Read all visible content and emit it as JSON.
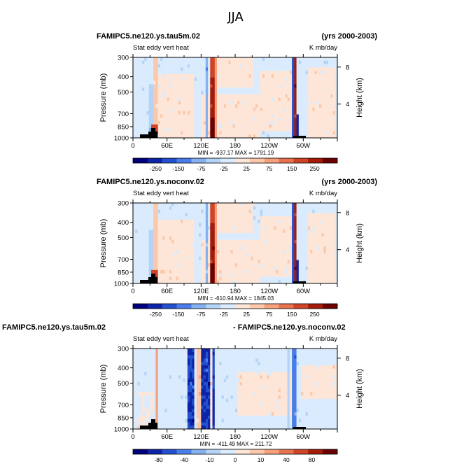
{
  "title": "JJA",
  "colors": {
    "scale": [
      "#00007a",
      "#0d24a6",
      "#2350cf",
      "#4a7de8",
      "#86b1f0",
      "#b3d3f7",
      "#d9ebfc",
      "#fde6d8",
      "#fbc8aa",
      "#f6a07d",
      "#e7724f",
      "#cf4426",
      "#a41b0a",
      "#6b0000"
    ],
    "land": "#000000"
  },
  "chart_data": [
    {
      "type": "heatmap",
      "case_title": "FAMIPC5.ne120.ys.tau5m.02",
      "years": "(yrs 2000-2003)",
      "variable": "Stat eddy vert heat",
      "units": "K mb/day",
      "ylabel": "Pressure (mb)",
      "ylabel_right": "Height (km)",
      "yticks": [
        "300",
        "400",
        "500",
        "700",
        "850",
        "1000"
      ],
      "yticks_right": [
        "8",
        "4"
      ],
      "xticks": [
        "0",
        "60E",
        "120E",
        "180",
        "120W",
        "60W"
      ],
      "minmax": "MIN = -937.17   MAX = 1791.19",
      "colorbar_labels": [
        "-250",
        "-150",
        "-75",
        "-25",
        "25",
        "75",
        "150",
        "250"
      ],
      "mode": "full"
    },
    {
      "type": "heatmap",
      "case_title": "FAMIPC5.ne120.ys.noconv.02",
      "years": "(yrs 2000-2003)",
      "variable": "Stat eddy vert heat",
      "units": "K mb/day",
      "ylabel": "Pressure (mb)",
      "ylabel_right": "Height (km)",
      "yticks": [
        "300",
        "400",
        "500",
        "700",
        "850",
        "1000"
      ],
      "yticks_right": [
        "8",
        "4"
      ],
      "xticks": [
        "0",
        "60E",
        "120E",
        "180",
        "120W",
        "60W"
      ],
      "minmax": "MIN = -610.94   MAX = 1845.03",
      "colorbar_labels": [
        "-250",
        "-150",
        "-75",
        "-25",
        "25",
        "75",
        "150",
        "250"
      ],
      "mode": "full"
    },
    {
      "type": "heatmap",
      "case_title": "FAMIPC5.ne120.ys.tau5m.02",
      "years": "- FAMIPC5.ne120.ys.noconv.02",
      "variable": "Stat eddy vert heat",
      "units": "K mb/day",
      "ylabel": "Pressure (mb)",
      "ylabel_right": "Height (km)",
      "yticks": [
        "300",
        "400",
        "500",
        "700",
        "850",
        "1000"
      ],
      "yticks_right": [
        "8",
        "4"
      ],
      "xticks": [
        "0",
        "60E",
        "120E",
        "180",
        "120W",
        "60W"
      ],
      "minmax": "MIN = -411.49   MAX = 211.72",
      "colorbar_labels": [
        "-80",
        "-40",
        "-10",
        "0",
        "10",
        "40",
        "80"
      ],
      "mode": "diff"
    }
  ]
}
